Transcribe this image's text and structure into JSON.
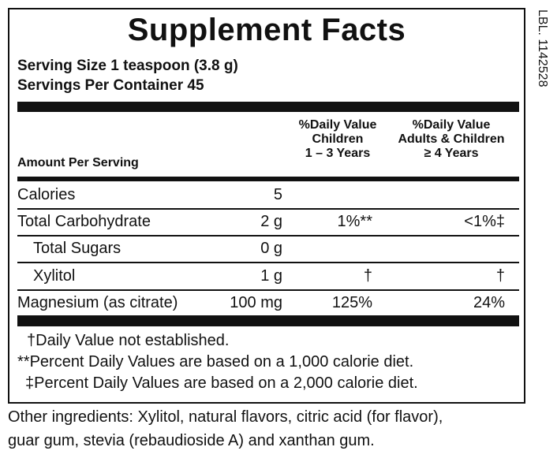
{
  "title": "Supplement Facts",
  "serving_size": "Serving Size 1 teaspoon (3.8 g)",
  "servings_per_container": "Servings Per Container 45",
  "side_label": "LBL. 1142528",
  "header": {
    "amount": "Amount Per Serving",
    "dv_children": [
      "%Daily Value",
      "Children",
      "1 – 3 Years"
    ],
    "dv_adults": [
      "%Daily Value",
      "Adults & Children",
      "≥ 4 Years"
    ]
  },
  "rows": [
    {
      "name": "Calories",
      "amount": "5",
      "dv_children": "",
      "dv_adults": "",
      "indent": false
    },
    {
      "name": "Total Carbohydrate",
      "amount": "2 g",
      "dv_children": "1%**",
      "dv_adults": "<1%‡",
      "indent": false
    },
    {
      "name": "Total Sugars",
      "amount": "0 g",
      "dv_children": "",
      "dv_adults": "",
      "indent": true
    },
    {
      "name": "Xylitol",
      "amount": "1 g",
      "dv_children": "†",
      "dv_adults": "†",
      "indent": true
    },
    {
      "name": "Magnesium (as citrate)",
      "amount": "100 mg",
      "dv_children": "125%",
      "dv_adults": "24%",
      "indent": false
    }
  ],
  "footnotes": [
    "†Daily Value not established.",
    "**Percent Daily Values are based on a 1,000 calorie diet.",
    "‡Percent Daily Values are based on a 2,000 calorie diet."
  ],
  "other_ingredients": [
    "Other ingredients: Xylitol, natural flavors, citric acid (for flavor),",
    "guar gum, stevia (rebaudioside A) and xanthan gum."
  ]
}
